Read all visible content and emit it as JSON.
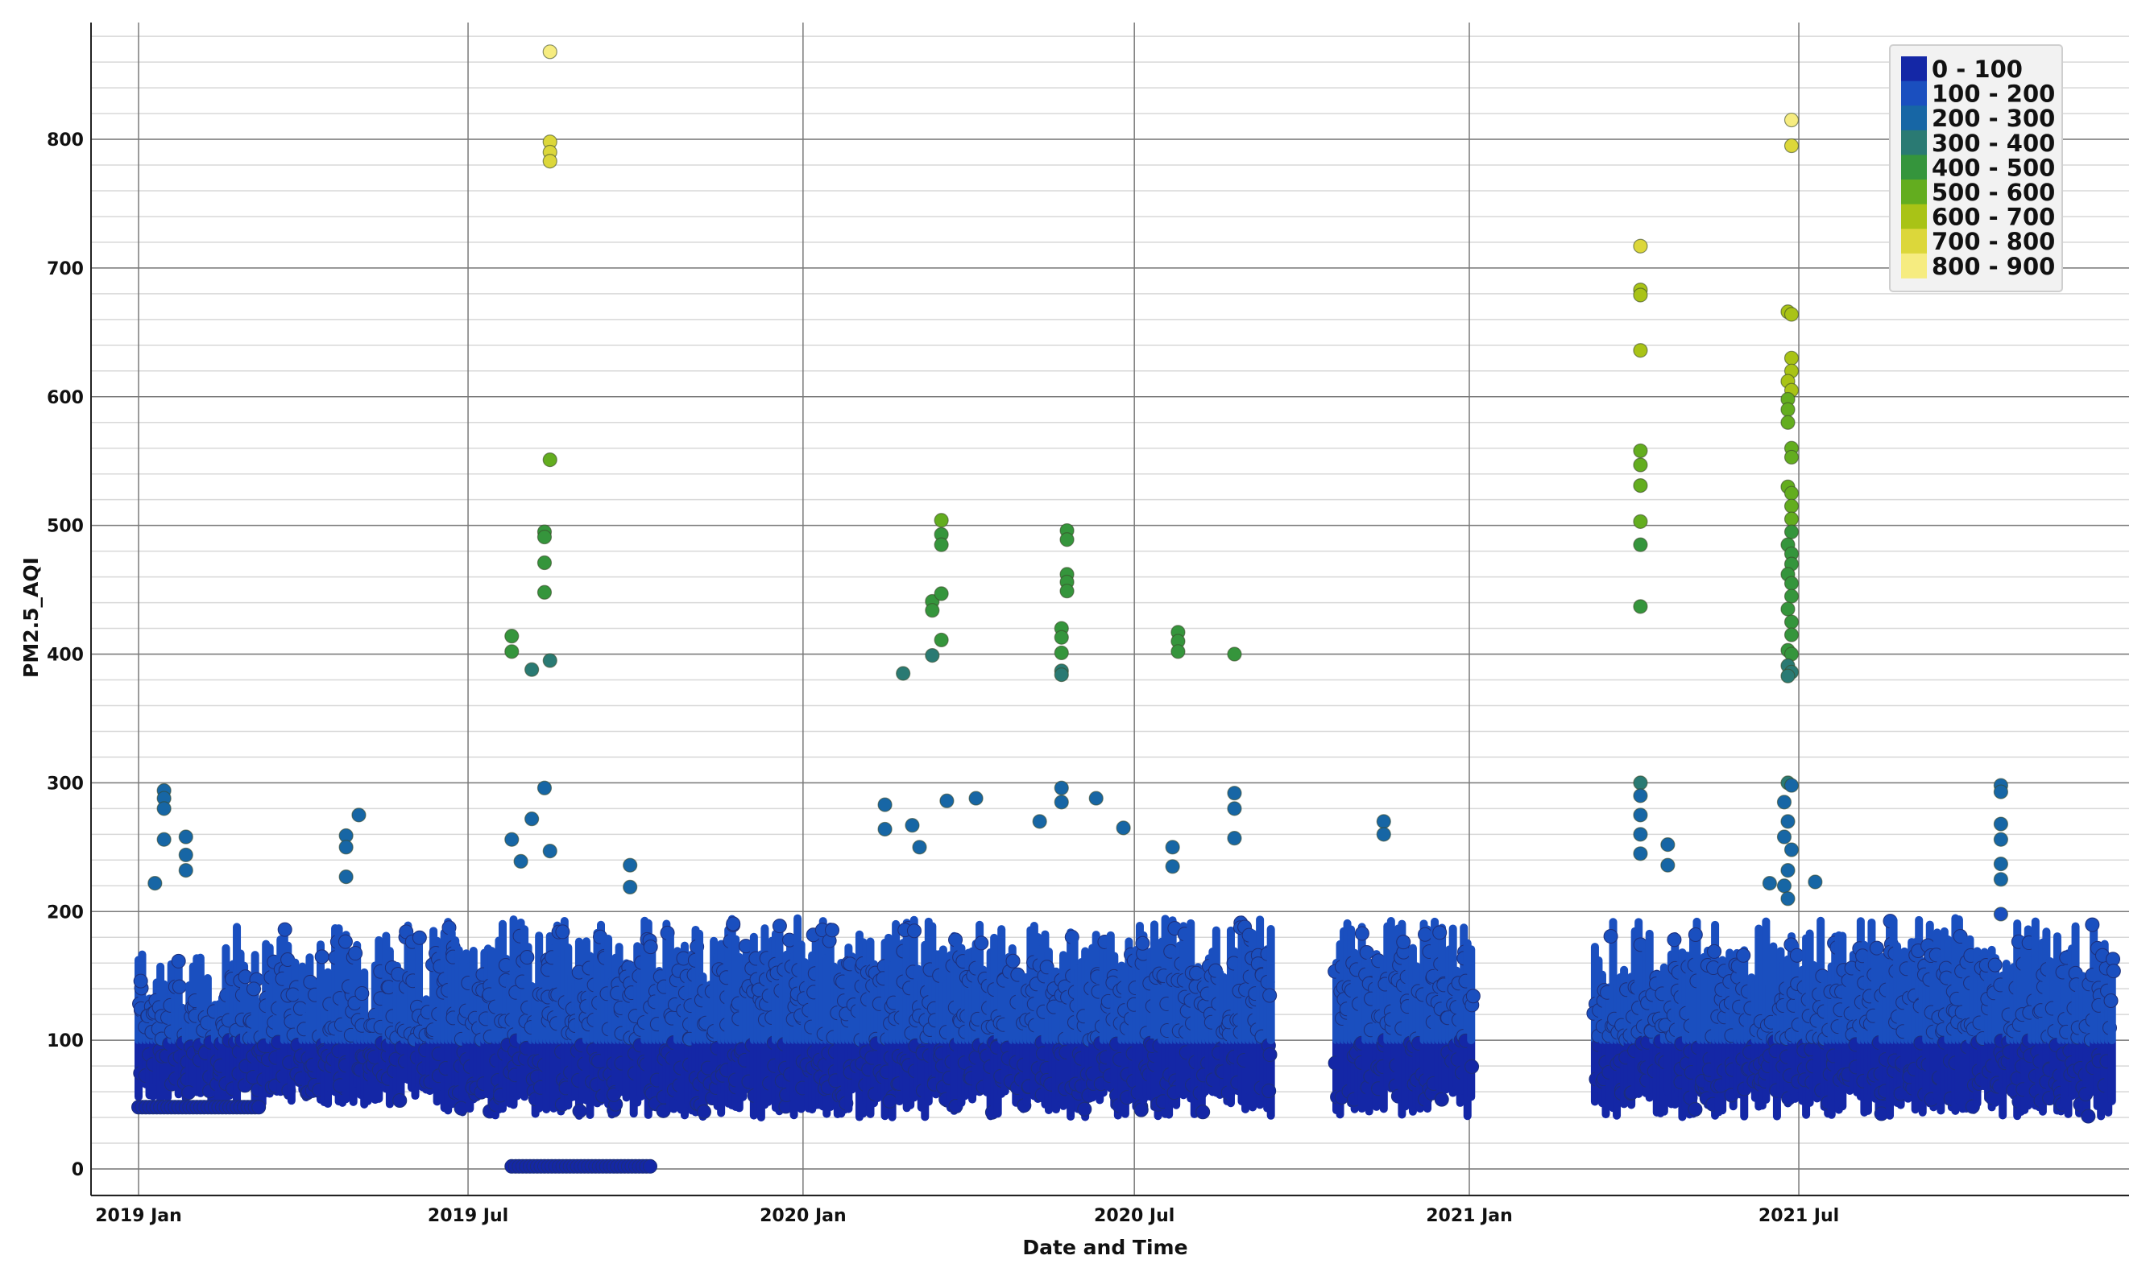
{
  "chart_data": {
    "type": "scatter",
    "title": "",
    "xlabel": "Date and Time",
    "ylabel": "PM2.5_AQI",
    "xlim": [
      "2018-12-15",
      "2021-12-31"
    ],
    "ylim": [
      -20,
      890
    ],
    "x_ticks": [
      {
        "label": "2019 Jan",
        "date": "2019-01-01"
      },
      {
        "label": "2019 Jul",
        "date": "2019-07-01"
      },
      {
        "label": "2020 Jan",
        "date": "2020-01-01"
      },
      {
        "label": "2020 Jul",
        "date": "2020-07-01"
      },
      {
        "label": "2021 Jan",
        "date": "2021-01-01"
      },
      {
        "label": "2021 Jul",
        "date": "2021-07-01"
      }
    ],
    "y_ticks": [
      0,
      100,
      200,
      300,
      400,
      500,
      600,
      700,
      800
    ],
    "grid": {
      "major": true,
      "minor_y_step": 20
    },
    "legend": {
      "placement": "top-right",
      "entries": [
        {
          "label": "0 - 100",
          "color": "#1427a6"
        },
        {
          "label": "100 - 200",
          "color": "#1a4fbf"
        },
        {
          "label": "200 - 300",
          "color": "#1766a5"
        },
        {
          "label": "300 - 400",
          "color": "#2a7a73"
        },
        {
          "label": "400 - 500",
          "color": "#35953c"
        },
        {
          "label": "500 - 600",
          "color": "#63ad1f"
        },
        {
          "label": "600 - 700",
          "color": "#a9c316"
        },
        {
          "label": "700 - 800",
          "color": "#dcd73a"
        },
        {
          "label": "800 - 900",
          "color": "#f6ec80"
        }
      ]
    },
    "data_gaps": [
      {
        "start": "2020-09-15",
        "end": "2020-10-20"
      },
      {
        "start": "2021-01-02",
        "end": "2021-03-10"
      }
    ],
    "series": [
      {
        "points": [
          {
            "x": "2019-08-15",
            "y": 868
          },
          {
            "x": "2019-08-15",
            "y": 798
          },
          {
            "x": "2019-08-15",
            "y": 790
          },
          {
            "x": "2019-08-15",
            "y": 783
          },
          {
            "x": "2019-08-15",
            "y": 551
          },
          {
            "x": "2019-08-12",
            "y": 495
          },
          {
            "x": "2019-08-12",
            "y": 491
          },
          {
            "x": "2019-08-12",
            "y": 471
          },
          {
            "x": "2019-08-12",
            "y": 448
          },
          {
            "x": "2019-07-25",
            "y": 414
          },
          {
            "x": "2019-07-25",
            "y": 402
          },
          {
            "x": "2019-08-05",
            "y": 388
          },
          {
            "x": "2019-08-15",
            "y": 395
          },
          {
            "x": "2019-08-12",
            "y": 296
          },
          {
            "x": "2019-08-05",
            "y": 272
          },
          {
            "x": "2019-07-25",
            "y": 256
          },
          {
            "x": "2019-07-30",
            "y": 239
          },
          {
            "x": "2019-08-15",
            "y": 247
          },
          {
            "x": "2019-01-15",
            "y": 294
          },
          {
            "x": "2019-01-15",
            "y": 288
          },
          {
            "x": "2019-01-15",
            "y": 280
          },
          {
            "x": "2019-01-15",
            "y": 256
          },
          {
            "x": "2019-01-10",
            "y": 222
          },
          {
            "x": "2019-01-27",
            "y": 258
          },
          {
            "x": "2019-01-27",
            "y": 244
          },
          {
            "x": "2019-01-27",
            "y": 232
          },
          {
            "x": "2019-05-02",
            "y": 275
          },
          {
            "x": "2019-04-25",
            "y": 259
          },
          {
            "x": "2019-04-25",
            "y": 250
          },
          {
            "x": "2019-04-25",
            "y": 227
          },
          {
            "x": "2019-09-28",
            "y": 236
          },
          {
            "x": "2019-09-28",
            "y": 219
          },
          {
            "x": "2020-02-25",
            "y": 385
          },
          {
            "x": "2020-03-12",
            "y": 399
          },
          {
            "x": "2020-03-12",
            "y": 441
          },
          {
            "x": "2020-03-12",
            "y": 434
          },
          {
            "x": "2020-03-17",
            "y": 504
          },
          {
            "x": "2020-03-17",
            "y": 493
          },
          {
            "x": "2020-03-17",
            "y": 485
          },
          {
            "x": "2020-03-17",
            "y": 447
          },
          {
            "x": "2020-03-17",
            "y": 411
          },
          {
            "x": "2020-02-15",
            "y": 283
          },
          {
            "x": "2020-02-15",
            "y": 264
          },
          {
            "x": "2020-03-20",
            "y": 286
          },
          {
            "x": "2020-04-05",
            "y": 288
          },
          {
            "x": "2020-03-01",
            "y": 267
          },
          {
            "x": "2020-03-05",
            "y": 250
          },
          {
            "x": "2020-05-25",
            "y": 496
          },
          {
            "x": "2020-05-25",
            "y": 489
          },
          {
            "x": "2020-05-25",
            "y": 462
          },
          {
            "x": "2020-05-25",
            "y": 456
          },
          {
            "x": "2020-05-25",
            "y": 449
          },
          {
            "x": "2020-05-22",
            "y": 420
          },
          {
            "x": "2020-05-22",
            "y": 413
          },
          {
            "x": "2020-05-22",
            "y": 401
          },
          {
            "x": "2020-05-22",
            "y": 387
          },
          {
            "x": "2020-05-22",
            "y": 384
          },
          {
            "x": "2020-05-22",
            "y": 296
          },
          {
            "x": "2020-05-22",
            "y": 285
          },
          {
            "x": "2020-06-10",
            "y": 288
          },
          {
            "x": "2020-06-25",
            "y": 265
          },
          {
            "x": "2020-05-10",
            "y": 270
          },
          {
            "x": "2020-07-25",
            "y": 417
          },
          {
            "x": "2020-07-25",
            "y": 410
          },
          {
            "x": "2020-07-25",
            "y": 402
          },
          {
            "x": "2020-08-25",
            "y": 400
          },
          {
            "x": "2020-07-22",
            "y": 250
          },
          {
            "x": "2020-07-22",
            "y": 235
          },
          {
            "x": "2020-08-25",
            "y": 292
          },
          {
            "x": "2020-08-25",
            "y": 280
          },
          {
            "x": "2020-08-25",
            "y": 257
          },
          {
            "x": "2020-11-15",
            "y": 270
          },
          {
            "x": "2020-11-15",
            "y": 260
          },
          {
            "x": "2021-04-05",
            "y": 717
          },
          {
            "x": "2021-04-05",
            "y": 683
          },
          {
            "x": "2021-04-05",
            "y": 679
          },
          {
            "x": "2021-04-05",
            "y": 636
          },
          {
            "x": "2021-04-05",
            "y": 558
          },
          {
            "x": "2021-04-05",
            "y": 547
          },
          {
            "x": "2021-04-05",
            "y": 531
          },
          {
            "x": "2021-04-05",
            "y": 503
          },
          {
            "x": "2021-04-05",
            "y": 485
          },
          {
            "x": "2021-04-05",
            "y": 437
          },
          {
            "x": "2021-04-05",
            "y": 300
          },
          {
            "x": "2021-04-05",
            "y": 290
          },
          {
            "x": "2021-04-05",
            "y": 275
          },
          {
            "x": "2021-04-05",
            "y": 260
          },
          {
            "x": "2021-04-05",
            "y": 245
          },
          {
            "x": "2021-04-20",
            "y": 252
          },
          {
            "x": "2021-04-20",
            "y": 236
          },
          {
            "x": "2021-06-27",
            "y": 815
          },
          {
            "x": "2021-06-27",
            "y": 795
          },
          {
            "x": "2021-06-25",
            "y": 666
          },
          {
            "x": "2021-06-27",
            "y": 664
          },
          {
            "x": "2021-06-27",
            "y": 630
          },
          {
            "x": "2021-06-27",
            "y": 620
          },
          {
            "x": "2021-06-25",
            "y": 612
          },
          {
            "x": "2021-06-27",
            "y": 605
          },
          {
            "x": "2021-06-25",
            "y": 598
          },
          {
            "x": "2021-06-25",
            "y": 590
          },
          {
            "x": "2021-06-25",
            "y": 580
          },
          {
            "x": "2021-06-27",
            "y": 560
          },
          {
            "x": "2021-06-27",
            "y": 553
          },
          {
            "x": "2021-06-25",
            "y": 530
          },
          {
            "x": "2021-06-27",
            "y": 525
          },
          {
            "x": "2021-06-27",
            "y": 515
          },
          {
            "x": "2021-06-27",
            "y": 505
          },
          {
            "x": "2021-06-27",
            "y": 495
          },
          {
            "x": "2021-06-25",
            "y": 485
          },
          {
            "x": "2021-06-27",
            "y": 478
          },
          {
            "x": "2021-06-27",
            "y": 470
          },
          {
            "x": "2021-06-25",
            "y": 462
          },
          {
            "x": "2021-06-27",
            "y": 455
          },
          {
            "x": "2021-06-27",
            "y": 445
          },
          {
            "x": "2021-06-25",
            "y": 435
          },
          {
            "x": "2021-06-27",
            "y": 425
          },
          {
            "x": "2021-06-27",
            "y": 415
          },
          {
            "x": "2021-06-25",
            "y": 403
          },
          {
            "x": "2021-06-27",
            "y": 400
          },
          {
            "x": "2021-06-25",
            "y": 391
          },
          {
            "x": "2021-06-27",
            "y": 386
          },
          {
            "x": "2021-06-25",
            "y": 383
          },
          {
            "x": "2021-06-25",
            "y": 300
          },
          {
            "x": "2021-06-27",
            "y": 298
          },
          {
            "x": "2021-06-23",
            "y": 285
          },
          {
            "x": "2021-06-25",
            "y": 270
          },
          {
            "x": "2021-06-23",
            "y": 258
          },
          {
            "x": "2021-06-27",
            "y": 248
          },
          {
            "x": "2021-06-25",
            "y": 232
          },
          {
            "x": "2021-06-23",
            "y": 220
          },
          {
            "x": "2021-06-25",
            "y": 210
          },
          {
            "x": "2021-07-10",
            "y": 223
          },
          {
            "x": "2021-06-15",
            "y": 222
          },
          {
            "x": "2021-10-20",
            "y": 298
          },
          {
            "x": "2021-10-20",
            "y": 293
          },
          {
            "x": "2021-10-20",
            "y": 268
          },
          {
            "x": "2021-10-20",
            "y": 256
          },
          {
            "x": "2021-10-20",
            "y": 237
          },
          {
            "x": "2021-10-20",
            "y": 225
          },
          {
            "x": "2021-10-20",
            "y": 198
          }
        ]
      }
    ]
  }
}
